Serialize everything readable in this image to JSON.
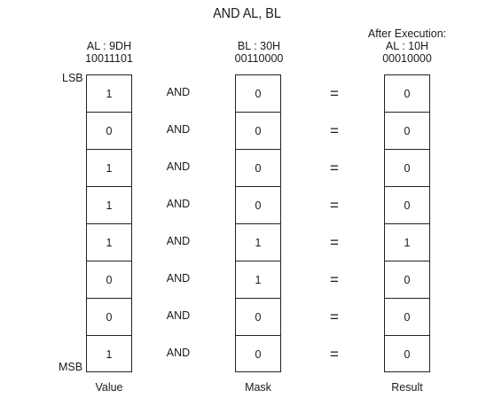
{
  "title": "AND AL, BL",
  "headers": {
    "value": {
      "line1": "AL : 9DH",
      "line2": "10011101"
    },
    "mask": {
      "line1": "BL : 30H",
      "line2": "00110000"
    },
    "result": {
      "line0": "After Execution:",
      "line1": "AL : 10H",
      "line2": "00010000"
    }
  },
  "side_labels": {
    "lsb": "LSB",
    "msb": "MSB"
  },
  "operator": "AND",
  "equals": "=",
  "rows": [
    {
      "value": "1",
      "mask": "0",
      "result": "0"
    },
    {
      "value": "0",
      "mask": "0",
      "result": "0"
    },
    {
      "value": "1",
      "mask": "0",
      "result": "0"
    },
    {
      "value": "1",
      "mask": "0",
      "result": "0"
    },
    {
      "value": "1",
      "mask": "1",
      "result": "1"
    },
    {
      "value": "0",
      "mask": "1",
      "result": "0"
    },
    {
      "value": "0",
      "mask": "0",
      "result": "0"
    },
    {
      "value": "1",
      "mask": "0",
      "result": "0"
    }
  ],
  "footers": {
    "value": "Value",
    "mask": "Mask",
    "result": "Result"
  }
}
